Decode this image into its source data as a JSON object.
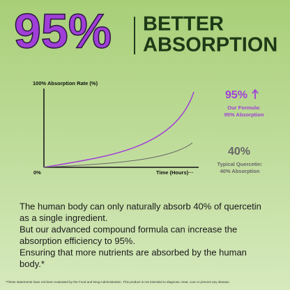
{
  "header": {
    "headline": "95%",
    "title_lines": [
      "BETTER",
      "ABSORPTION"
    ]
  },
  "chart": {
    "y_label": "100% Absorption Rate (%)",
    "origin_label": "0%",
    "x_label": "Time (Hours)···"
  },
  "callouts": [
    {
      "value": "95%",
      "lines": [
        "Our Formula:",
        "95% Absorption"
      ]
    },
    {
      "value": "40%",
      "lines": [
        "Typical Quercetin:",
        "40% Absorption"
      ]
    }
  ],
  "body": {
    "lines": [
      "The human body can only naturally absorb 40% of quercetin",
      "as a single ingredient.",
      "But our advanced compound formula can increase the",
      "absorption efficiency to 95%.",
      "Ensuring that more nutrients are absorbed by the human",
      "body.*"
    ]
  },
  "footnote": "*These statements have not been evaluated by the Food and Drug Administration. This product is not intended to diagnose, treat, cure or prevent any disease."
}
